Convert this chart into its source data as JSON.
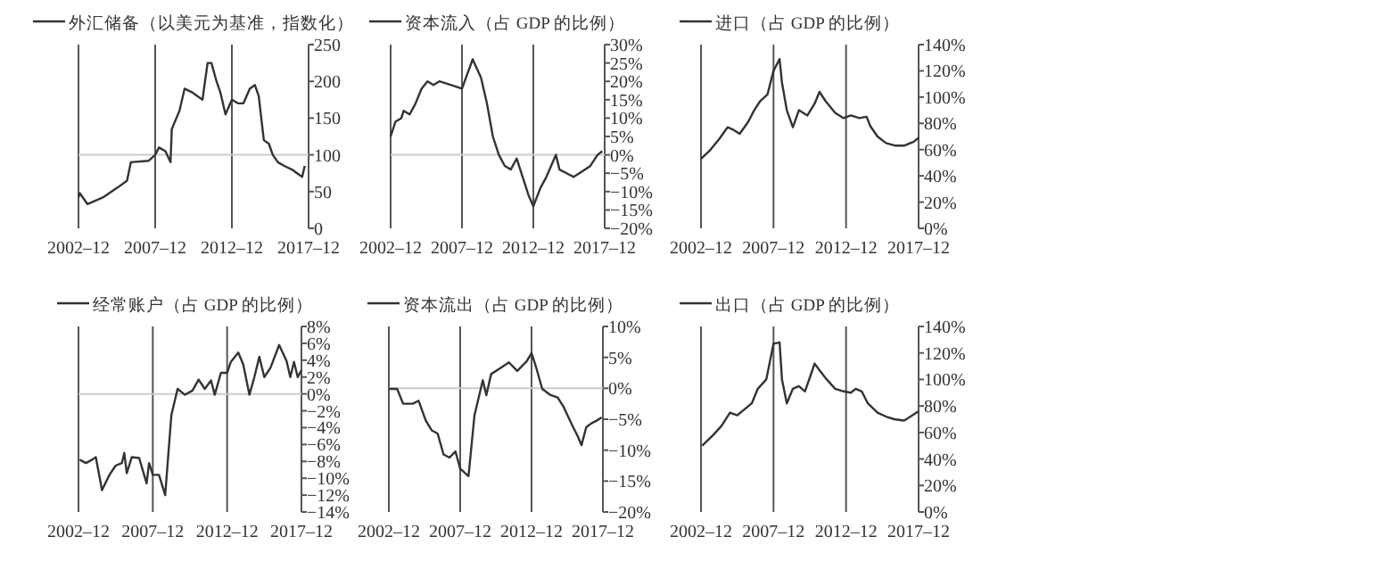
{
  "chart_data": [
    {
      "type": "line",
      "legend": "top",
      "grid": false,
      "xlim": [
        "2002-12",
        "2017-12"
      ],
      "xticks": [
        {
          "value": "2002-12",
          "label": "2002–12"
        },
        {
          "value": "2007-12",
          "label": "2007–12"
        },
        {
          "value": "2012-12",
          "label": "2012–12"
        },
        {
          "value": "2017-12",
          "label": "2017–12"
        }
      ],
      "ylim": [
        0,
        250
      ],
      "yticks": [
        0,
        50,
        100,
        150,
        200,
        250
      ],
      "ref_lines": [
        {
          "axis": "x",
          "value": "2007-12",
          "color": "#555555"
        },
        {
          "axis": "x",
          "value": "2012-12",
          "color": "#555555"
        },
        {
          "axis": "y",
          "value": 100,
          "color": "#cccccc"
        }
      ],
      "series": [
        {
          "name": "外汇储备（以美元为基准，指数化）",
          "color": "#333333",
          "x": [
            "2002-12",
            "2003-01",
            "2003-07",
            "2004-07",
            "2005-07",
            "2006-02",
            "2006-05",
            "2007-07",
            "2007-12",
            "2008-03",
            "2008-08",
            "2008-12",
            "2009-01",
            "2009-07",
            "2009-11",
            "2010-05",
            "2010-09",
            "2011-01",
            "2011-05",
            "2011-08",
            "2011-12",
            "2012-03",
            "2012-07",
            "2012-12",
            "2013-05",
            "2013-09",
            "2014-02",
            "2014-06",
            "2014-09",
            "2015-01",
            "2015-05",
            "2015-08",
            "2015-12",
            "2016-05",
            "2016-11",
            "2017-03",
            "2017-07",
            "2017-09"
          ],
          "values": [
            42,
            48,
            33,
            42,
            56,
            65,
            90,
            92,
            100,
            110,
            105,
            90,
            135,
            160,
            190,
            185,
            180,
            175,
            225,
            225,
            200,
            185,
            155,
            175,
            170,
            170,
            190,
            195,
            180,
            120,
            115,
            100,
            90,
            85,
            80,
            75,
            70,
            85
          ]
        }
      ]
    },
    {
      "type": "line",
      "legend": "top left",
      "grid": false,
      "xlim": [
        "2002-12",
        "2017-12"
      ],
      "xticks": [
        {
          "value": "2002-12",
          "label": "2002–12"
        },
        {
          "value": "2007-12",
          "label": "2007–12"
        },
        {
          "value": "2012-12",
          "label": "2012–12"
        },
        {
          "value": "2017-12",
          "label": "2017–12"
        }
      ],
      "ylim": [
        -20,
        30
      ],
      "yticks": [
        {
          "value": -20,
          "label": "−20%"
        },
        {
          "value": -15,
          "label": "−15%"
        },
        {
          "value": -10,
          "label": "−10%"
        },
        {
          "value": -5,
          "label": "−5%"
        },
        {
          "value": 0,
          "label": "0%"
        },
        {
          "value": 5,
          "label": "5%"
        },
        {
          "value": 10,
          "label": "10%"
        },
        {
          "value": 15,
          "label": "15%"
        },
        {
          "value": 20,
          "label": "20%"
        },
        {
          "value": 25,
          "label": "25%"
        },
        {
          "value": 30,
          "label": "30%"
        }
      ],
      "ref_lines": [
        {
          "axis": "x",
          "value": "2007-12",
          "color": "#555555"
        },
        {
          "axis": "x",
          "value": "2012-12",
          "color": "#555555"
        },
        {
          "axis": "y",
          "value": 0,
          "color": "#cccccc"
        }
      ],
      "series": [
        {
          "name": "资本流入（占 GDP 的比例）",
          "color": "#333333",
          "x": [
            "2002-12",
            "2003-04",
            "2003-09",
            "2003-11",
            "2004-04",
            "2004-09",
            "2005-02",
            "2005-07",
            "2005-12",
            "2006-05",
            "2007-03",
            "2007-12",
            "2008-09",
            "2009-04",
            "2009-09",
            "2010-02",
            "2010-07",
            "2010-12",
            "2011-05",
            "2011-10",
            "2012-03",
            "2012-08",
            "2012-12",
            "2013-06",
            "2013-11",
            "2014-07",
            "2014-10",
            "2015-04",
            "2015-10",
            "2016-05",
            "2016-12",
            "2017-06",
            "2017-10"
          ],
          "values": [
            5,
            9,
            10,
            12,
            11,
            14,
            18,
            20,
            19,
            20,
            19,
            18,
            26,
            21,
            14,
            5,
            0,
            -3,
            -4,
            -1,
            -6,
            -11,
            -14,
            -9,
            -6,
            0,
            -4,
            -5,
            -6,
            -4.5,
            -3,
            0,
            1
          ]
        }
      ]
    },
    {
      "type": "line",
      "legend": "top left",
      "grid": false,
      "xlim": [
        "2002-12",
        "2017-12"
      ],
      "xticks": [
        {
          "value": "2002-12",
          "label": "2002–12"
        },
        {
          "value": "2007-12",
          "label": "2007–12"
        },
        {
          "value": "2012-12",
          "label": "2012–12"
        },
        {
          "value": "2017-12",
          "label": "2017–12"
        }
      ],
      "ylim": [
        0,
        140
      ],
      "yticks": [
        {
          "value": 0,
          "label": "0%"
        },
        {
          "value": 20,
          "label": "20%"
        },
        {
          "value": 40,
          "label": "40%"
        },
        {
          "value": 60,
          "label": "60%"
        },
        {
          "value": 80,
          "label": "80%"
        },
        {
          "value": 100,
          "label": "100%"
        },
        {
          "value": 120,
          "label": "120%"
        },
        {
          "value": 140,
          "label": "140%"
        }
      ],
      "ref_lines": [
        {
          "axis": "x",
          "value": "2007-12",
          "color": "#555555"
        },
        {
          "axis": "x",
          "value": "2012-12",
          "color": "#555555"
        }
      ],
      "series": [
        {
          "name": "进口（占 GDP 的比例）",
          "color": "#333333",
          "x": [
            "2002-12",
            "2003-07",
            "2004-03",
            "2004-10",
            "2005-03",
            "2005-08",
            "2006-03",
            "2006-08",
            "2007-01",
            "2007-07",
            "2007-12",
            "2008-05",
            "2008-07",
            "2008-11",
            "2009-04",
            "2009-09",
            "2010-04",
            "2010-10",
            "2011-02",
            "2011-07",
            "2012-03",
            "2012-10",
            "2013-04",
            "2013-11",
            "2014-05",
            "2014-08",
            "2015-02",
            "2015-09",
            "2016-05",
            "2016-12",
            "2017-08",
            "2017-12"
          ],
          "values": [
            53,
            59,
            68,
            77,
            75,
            72,
            81,
            90,
            97,
            102,
            120,
            129,
            111,
            90,
            77,
            90,
            86,
            95,
            104,
            97,
            88,
            84,
            86,
            84,
            85,
            78,
            70,
            65,
            63,
            63,
            66,
            69
          ]
        }
      ]
    },
    {
      "type": "line",
      "legend": "top left",
      "grid": false,
      "xlim": [
        "2002-12",
        "2017-12"
      ],
      "xticks": [
        {
          "value": "2002-12",
          "label": "2002–12"
        },
        {
          "value": "2007-12",
          "label": "2007–12"
        },
        {
          "value": "2012-12",
          "label": "2012–12"
        },
        {
          "value": "2017-12",
          "label": "2017–12"
        }
      ],
      "ylim": [
        -14,
        8
      ],
      "yticks": [
        {
          "value": -14,
          "label": "−14%"
        },
        {
          "value": -12,
          "label": "−12%"
        },
        {
          "value": -10,
          "label": "−10%"
        },
        {
          "value": -8,
          "label": "−8%"
        },
        {
          "value": -6,
          "label": "−6%"
        },
        {
          "value": -4,
          "label": "−4%"
        },
        {
          "value": -2,
          "label": "−2%"
        },
        {
          "value": 0,
          "label": "0%"
        },
        {
          "value": 2,
          "label": "2%"
        },
        {
          "value": 4,
          "label": "4%"
        },
        {
          "value": 6,
          "label": "6%"
        },
        {
          "value": 8,
          "label": "8%"
        }
      ],
      "ref_lines": [
        {
          "axis": "x",
          "value": "2007-12",
          "color": "#555555"
        },
        {
          "axis": "x",
          "value": "2012-12",
          "color": "#555555"
        },
        {
          "axis": "y",
          "value": 0,
          "color": "#cccccc"
        }
      ],
      "series": [
        {
          "name": "经常账户（占 GDP 的比例）",
          "color": "#333333",
          "x": [
            "2003-01",
            "2003-06",
            "2003-11",
            "2004-02",
            "2004-07",
            "2005-01",
            "2005-06",
            "2005-11",
            "2006-01",
            "2006-03",
            "2006-07",
            "2007-01",
            "2007-07",
            "2007-09",
            "2007-12",
            "2008-05",
            "2008-10",
            "2009-03",
            "2009-08",
            "2010-02",
            "2010-08",
            "2011-01",
            "2011-06",
            "2011-11",
            "2012-02",
            "2012-07",
            "2012-12",
            "2013-03",
            "2013-09",
            "2014-01",
            "2014-06",
            "2014-10",
            "2015-02",
            "2015-06",
            "2015-11",
            "2016-06",
            "2016-12",
            "2017-03",
            "2017-06",
            "2017-09",
            "2017-12"
          ],
          "values": [
            -7.8,
            -8.2,
            -7.8,
            -7.5,
            -11.4,
            -9.6,
            -8.5,
            -8.2,
            -7,
            -9.4,
            -7.5,
            -7.6,
            -10.6,
            -8.2,
            -9.6,
            -9.6,
            -12,
            -2.5,
            0.6,
            -0.1,
            0.4,
            1.7,
            0.6,
            1.6,
            -0.1,
            2.5,
            2.5,
            3.8,
            4.9,
            3.5,
            -0.1,
            2,
            4.4,
            2,
            3.1,
            5.8,
            3.9,
            2,
            3.8,
            2,
            2.8
          ]
        }
      ]
    },
    {
      "type": "line",
      "legend": "top left",
      "grid": false,
      "xlim": [
        "2002-12",
        "2017-12"
      ],
      "xticks": [
        {
          "value": "2002-12",
          "label": "2002–12"
        },
        {
          "value": "2007-12",
          "label": "2007–12"
        },
        {
          "value": "2012-12",
          "label": "2012–12"
        },
        {
          "value": "2017-12",
          "label": "2017–12"
        }
      ],
      "ylim": [
        -20,
        10
      ],
      "yticks": [
        {
          "value": -20,
          "label": "−20%"
        },
        {
          "value": -15,
          "label": "−15%"
        },
        {
          "value": -10,
          "label": "−10%"
        },
        {
          "value": -5,
          "label": "−5%"
        },
        {
          "value": 0,
          "label": "0%"
        },
        {
          "value": 5,
          "label": "5%"
        },
        {
          "value": 10,
          "label": "10%"
        }
      ],
      "ref_lines": [
        {
          "axis": "x",
          "value": "2007-12",
          "color": "#555555"
        },
        {
          "axis": "x",
          "value": "2012-12",
          "color": "#555555"
        },
        {
          "axis": "y",
          "value": 0,
          "color": "#cccccc"
        }
      ],
      "series": [
        {
          "name": "资本流出（占 GDP 的比例）",
          "color": "#333333",
          "x": [
            "2002-12",
            "2003-07",
            "2003-12",
            "2004-08",
            "2005-01",
            "2005-07",
            "2005-12",
            "2006-05",
            "2006-10",
            "2007-03",
            "2007-08",
            "2007-12",
            "2008-07",
            "2008-12",
            "2009-07",
            "2009-10",
            "2010-02",
            "2010-10",
            "2011-05",
            "2011-12",
            "2012-08",
            "2012-12",
            "2013-04",
            "2013-09",
            "2014-04",
            "2014-10",
            "2015-03",
            "2015-10",
            "2016-03",
            "2016-06",
            "2016-10",
            "2017-02",
            "2017-07",
            "2017-11"
          ],
          "values": [
            -0.1,
            -0.1,
            -2.5,
            -2.5,
            -2,
            -5.2,
            -6.8,
            -7.3,
            -10.7,
            -11.2,
            -10.2,
            -13,
            -14.2,
            -4.4,
            1.3,
            -1.1,
            2.3,
            3.3,
            4.2,
            2.8,
            4.4,
            5.7,
            3.3,
            -0.1,
            -1.1,
            -1.5,
            -3,
            -5.9,
            -7.8,
            -9.2,
            -6.3,
            -5.7,
            -5.2,
            -4.7
          ]
        }
      ]
    },
    {
      "type": "line",
      "legend": "top left",
      "grid": false,
      "xlim": [
        "2002-12",
        "2017-12"
      ],
      "xticks": [
        {
          "value": "2002-12",
          "label": "2002–12"
        },
        {
          "value": "2007-12",
          "label": "2007–12"
        },
        {
          "value": "2012-12",
          "label": "2012–12"
        },
        {
          "value": "2017-12",
          "label": "2017–12"
        }
      ],
      "ylim": [
        0,
        140
      ],
      "yticks": [
        {
          "value": 0,
          "label": "0%"
        },
        {
          "value": 20,
          "label": "20%"
        },
        {
          "value": 40,
          "label": "40%"
        },
        {
          "value": 60,
          "label": "60%"
        },
        {
          "value": 80,
          "label": "80%"
        },
        {
          "value": 100,
          "label": "100%"
        },
        {
          "value": 120,
          "label": "120%"
        },
        {
          "value": 140,
          "label": "140%"
        }
      ],
      "ref_lines": [
        {
          "axis": "x",
          "value": "2007-12",
          "color": "#555555"
        },
        {
          "axis": "x",
          "value": "2012-12",
          "color": "#555555"
        }
      ],
      "series": [
        {
          "name": "出口（占 GDP 的比例）",
          "color": "#333333",
          "x": [
            "2003-01",
            "2003-10",
            "2004-05",
            "2004-12",
            "2005-06",
            "2005-10",
            "2006-06",
            "2006-11",
            "2007-06",
            "2007-12",
            "2008-05",
            "2008-07",
            "2008-11",
            "2009-04",
            "2009-09",
            "2010-02",
            "2010-07",
            "2010-10",
            "2011-02",
            "2011-08",
            "2012-03",
            "2012-10",
            "2013-04",
            "2013-08",
            "2014-01",
            "2014-06",
            "2015-02",
            "2015-09",
            "2016-04",
            "2016-12",
            "2017-07",
            "2017-12"
          ],
          "values": [
            50,
            58,
            65,
            75,
            73,
            76,
            82,
            93,
            100,
            127,
            128,
            100,
            82,
            93,
            95,
            91,
            104,
            112,
            107,
            100,
            93,
            91,
            90,
            93,
            91,
            82,
            75,
            72,
            70,
            69,
            73,
            76
          ]
        }
      ]
    }
  ]
}
